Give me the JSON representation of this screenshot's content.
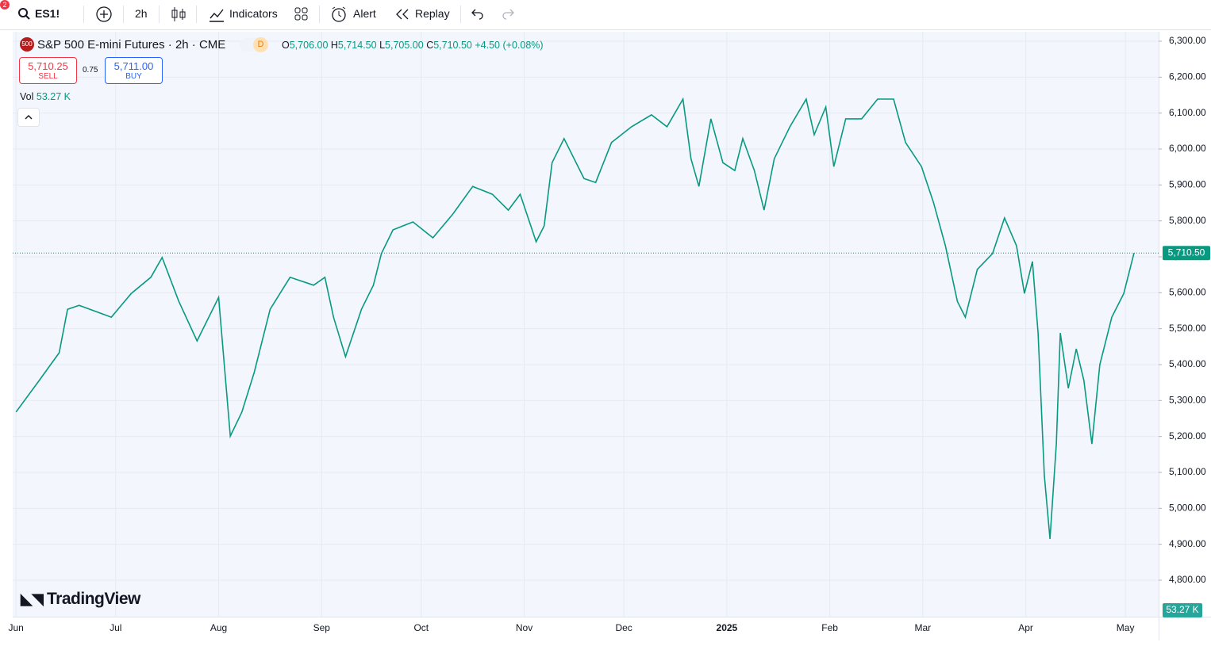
{
  "toolbar": {
    "notifications": "2",
    "symbol": "ES1!",
    "interval": "2h",
    "indicators": "Indicators",
    "alert": "Alert",
    "replay": "Replay"
  },
  "legend": {
    "badge": "500",
    "title": "S&P 500 E-mini Futures · 2h · CME",
    "delay": "D",
    "open_label": "O",
    "open": "5,706.00",
    "high_label": "H",
    "high": "5,714.50",
    "low_label": "L",
    "low": "5,705.00",
    "close_label": "C",
    "close": "5,710.50",
    "change": "+4.50 (+0.08%)",
    "volume_label": "Vol",
    "volume": "53.27 K"
  },
  "trade": {
    "sell_price": "5,710.25",
    "sell": "SELL",
    "spread": "0.75",
    "buy_price": "5,711.00",
    "buy": "BUY"
  },
  "logo": "TradingView",
  "chart_data": {
    "type": "line",
    "color": "#089981",
    "x": [
      0,
      7,
      13,
      15.5,
      19,
      28.7,
      34.7,
      40.6,
      44,
      49,
      54.5,
      61,
      64.5,
      68,
      71.7,
      76.5,
      82.5,
      89.6,
      93,
      95.6,
      99.2,
      104,
      107.6,
      110,
      113.5,
      119.5,
      125.5,
      131.5,
      137.5,
      143.4,
      148.2,
      151.8,
      156.6,
      159,
      161.4,
      165,
      171,
      174.5,
      179.3,
      185.3,
      191.3,
      196,
      200.8,
      203.2,
      205.6,
      209.2,
      212.8,
      216.4,
      218.8,
      222.3,
      225.2,
      228.3,
      233,
      237.9,
      240.3,
      243.8,
      246.2,
      249.8,
      254.6,
      259.4,
      264.2,
      267.8,
      272.6,
      276.2,
      279.8,
      283.4,
      285.8,
      289.4,
      294,
      297.6,
      301.2,
      303.6,
      306,
      307.7,
      309.6,
      311.3,
      313.2,
      314.4,
      316.8,
      319.2,
      321.5,
      323.9,
      326.3,
      329.9,
      333.5,
      336.6
    ],
    "values": [
      5268,
      5356,
      5433,
      5554,
      5565,
      5532,
      5598,
      5643,
      5698,
      5576,
      5466,
      5587,
      5201,
      5268,
      5378,
      5554,
      5643,
      5621,
      5643,
      5532,
      5422,
      5554,
      5621,
      5709,
      5775,
      5797,
      5753,
      5819,
      5896,
      5874,
      5830,
      5874,
      5742,
      5786,
      5962,
      6029,
      5918,
      5907,
      6018,
      6062,
      6095,
      6062,
      6139,
      5973,
      5896,
      6084,
      5962,
      5940,
      6029,
      5940,
      5830,
      5973,
      6062,
      6139,
      6040,
      6117,
      5951,
      6084,
      6084,
      6139,
      6139,
      6018,
      5951,
      5852,
      5731,
      5576,
      5532,
      5665,
      5709,
      5808,
      5731,
      5598,
      5687,
      5488,
      5091,
      4915,
      5179,
      5488,
      5334,
      5444,
      5356,
      5179,
      5400,
      5532,
      5598,
      5710.5
    ],
    "xlim": [
      -1,
      344
    ],
    "xticks": [
      {
        "value": 0,
        "label": "Jun"
      },
      {
        "value": 30,
        "label": "Jul"
      },
      {
        "value": 61,
        "label": "Aug"
      },
      {
        "value": 92,
        "label": "Sep"
      },
      {
        "value": 122,
        "label": "Oct"
      },
      {
        "value": 153,
        "label": "Nov"
      },
      {
        "value": 183,
        "label": "Dec"
      },
      {
        "value": 214,
        "label": "2025"
      },
      {
        "value": 245,
        "label": "Feb"
      },
      {
        "value": 273,
        "label": "Mar"
      },
      {
        "value": 304,
        "label": "Apr"
      },
      {
        "value": 334,
        "label": "May"
      }
    ],
    "ylim": [
      4698.5,
      6326.5
    ],
    "yticks": [
      {
        "value": 6300,
        "label": "6,300.00"
      },
      {
        "value": 6200,
        "label": "6,200.00"
      },
      {
        "value": 6100,
        "label": "6,100.00"
      },
      {
        "value": 6000,
        "label": "6,000.00"
      },
      {
        "value": 5900,
        "label": "5,900.00"
      },
      {
        "value": 5800,
        "label": "5,800.00"
      },
      {
        "value": 5700,
        "label": "5,700.00"
      },
      {
        "value": 5600,
        "label": "5,600.00"
      },
      {
        "value": 5500,
        "label": "5,500.00"
      },
      {
        "value": 5400,
        "label": "5,400.00"
      },
      {
        "value": 5300,
        "label": "5,300.00"
      },
      {
        "value": 5200,
        "label": "5,200.00"
      },
      {
        "value": 5100,
        "label": "5,100.00"
      },
      {
        "value": 5000,
        "label": "5,000.00"
      },
      {
        "value": 4900,
        "label": "4,900.00"
      },
      {
        "value": 4800,
        "label": "4,800.00"
      }
    ],
    "last_price": {
      "value": 5710.5,
      "label": "5,710.50"
    },
    "volume_badge": "53.27 K",
    "grid": true
  }
}
